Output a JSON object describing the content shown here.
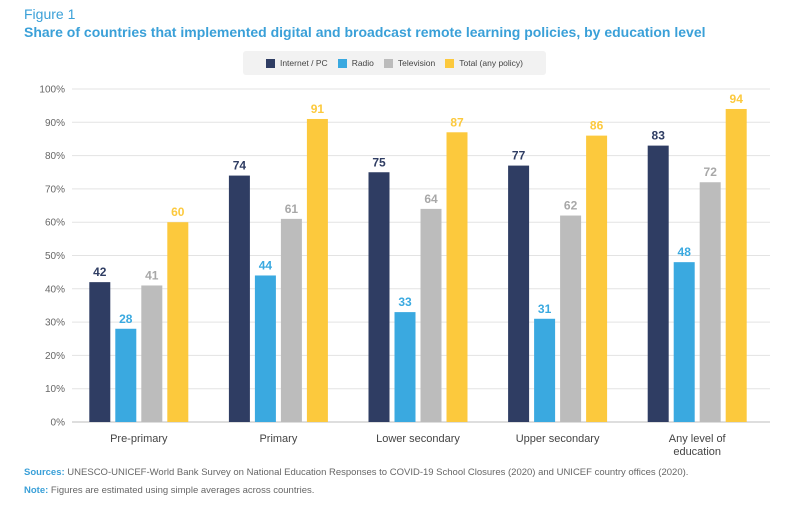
{
  "figure_label": "Figure 1",
  "chart_data": {
    "type": "bar",
    "title": "Share of countries that implemented digital and broadcast remote learning policies, by education level",
    "categories": [
      "Pre-primary",
      "Primary",
      "Lower secondary",
      "Upper secondary",
      "Any level of education"
    ],
    "series": [
      {
        "name": "Internet / PC",
        "color": "#2f3d63",
        "values": [
          42,
          74,
          75,
          77,
          83
        ]
      },
      {
        "name": "Radio",
        "color": "#3aa9e0",
        "values": [
          28,
          44,
          33,
          31,
          48
        ]
      },
      {
        "name": "Television",
        "color": "#bcbcbc",
        "values": [
          41,
          61,
          64,
          62,
          72
        ]
      },
      {
        "name": "Total (any policy)",
        "color": "#fcc93d",
        "values": [
          60,
          91,
          87,
          86,
          94
        ]
      }
    ],
    "ylim": [
      0,
      100
    ],
    "yticks": [
      0,
      10,
      20,
      30,
      40,
      50,
      60,
      70,
      80,
      90,
      100
    ],
    "ytick_labels": [
      "0%",
      "10%",
      "20%",
      "30%",
      "40%",
      "50%",
      "60%",
      "70%",
      "80%",
      "90%",
      "100%"
    ],
    "grid": true,
    "legend_position": "top"
  },
  "footnotes": {
    "sources_label": "Sources:",
    "sources_text": "UNESCO-UNICEF-World Bank Survey on National Education Responses to COVID-19 School Closures (2020) and UNICEF country offices (2020).",
    "note_label": "Note:",
    "note_text": "Figures are estimated using simple averages across countries."
  }
}
